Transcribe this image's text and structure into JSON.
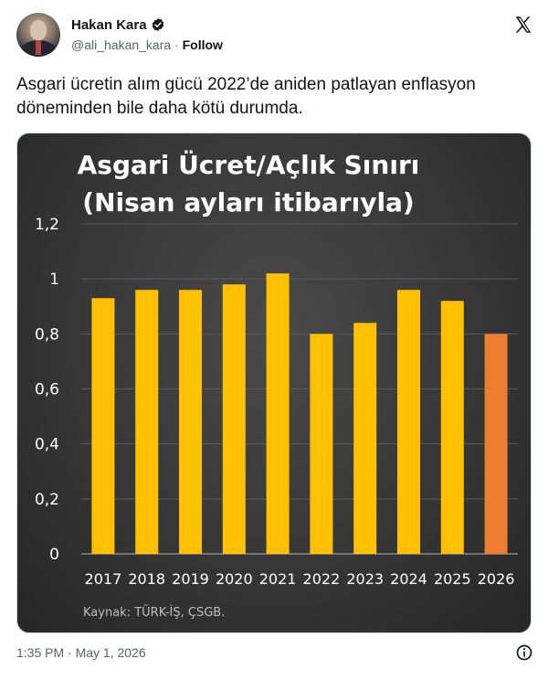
{
  "tweet": {
    "author_name": "Hakan Kara",
    "handle": "@ali_hakan_kara",
    "separator": "·",
    "follow_label": "Follow",
    "text_line1": "Asgari ücretin alım gücü 2022’de aniden patlayan enflasyon",
    "text_line2": "döneminden bile daha kötü durumda.",
    "timestamp": "1:35 PM · May 1, 2026",
    "icons": {
      "verified": "verified-badge-icon",
      "platform": "x-logo-icon",
      "info": "info-icon"
    }
  },
  "chart_data": {
    "type": "bar",
    "title_line1": "Asgari Ücret/Açlık Sınırı",
    "title_line2": "(Nisan ayları itibarıyla)",
    "categories": [
      "2017",
      "2018",
      "2019",
      "2020",
      "2021",
      "2022",
      "2023",
      "2024",
      "2025",
      "2026"
    ],
    "values": [
      0.93,
      0.96,
      0.96,
      0.98,
      1.02,
      0.8,
      0.84,
      0.96,
      0.92,
      0.8
    ],
    "ylim": [
      0,
      1.2
    ],
    "yticks": [
      0,
      0.2,
      0.4,
      0.6,
      0.8,
      1,
      1.2
    ],
    "ytick_labels": [
      "0",
      "0,2",
      "0,4",
      "0,6",
      "0,8",
      "1",
      "1,2"
    ],
    "grid": true,
    "bar_color": "#FFC000",
    "highlight_color": "#ED7D31",
    "highlight_category": "2026",
    "source": "Kaynak: TÜRK-İŞ, ÇSGB.",
    "xlabel": "",
    "ylabel": ""
  }
}
